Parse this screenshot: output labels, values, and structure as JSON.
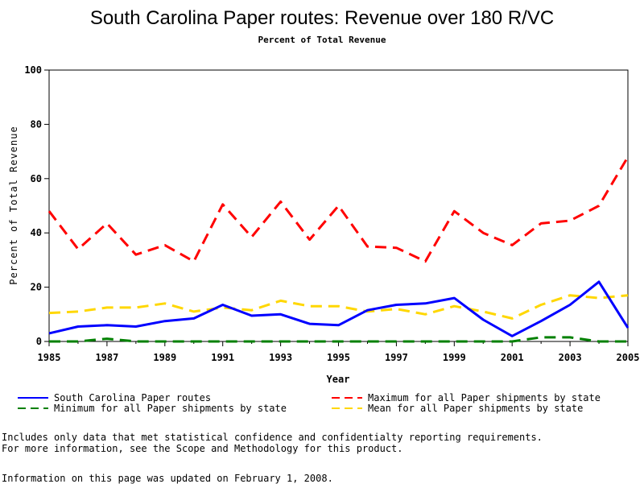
{
  "chart_data": {
    "type": "line",
    "title": "South Carolina Paper routes: Revenue over 180 R/VC",
    "subtitle": "Percent of Total Revenue",
    "xlabel": "Year",
    "ylabel": "Percent of Total Revenue",
    "xlim": [
      1985,
      2005
    ],
    "ylim": [
      0,
      100
    ],
    "x_ticks": [
      "1985",
      "1987",
      "1989",
      "1991",
      "1993",
      "1995",
      "1997",
      "1999",
      "2001",
      "2003",
      "2005"
    ],
    "y_ticks": [
      "0",
      "20",
      "40",
      "60",
      "80",
      "100"
    ],
    "grid": false,
    "legend_position": "bottom",
    "x": [
      1985,
      1986,
      1987,
      1988,
      1989,
      1990,
      1991,
      1992,
      1993,
      1994,
      1995,
      1996,
      1997,
      1998,
      1999,
      2000,
      2001,
      2002,
      2003,
      2004,
      2005
    ],
    "series": [
      {
        "name": "South Carolina Paper routes",
        "color": "#0000ff",
        "dash": "solid",
        "values": [
          3,
          5.5,
          6,
          5.5,
          7.5,
          8.5,
          13.5,
          9.5,
          10,
          6.5,
          6,
          11.5,
          13.5,
          14,
          16,
          8,
          2,
          7.5,
          13.5,
          22,
          5
        ]
      },
      {
        "name": "Maximum for all Paper shipments by state",
        "color": "#ff0000",
        "dash": "dashed",
        "values": [
          48,
          34,
          43.5,
          32,
          35.5,
          29.5,
          50.5,
          38.5,
          51.5,
          37.5,
          50,
          35,
          34.5,
          29.5,
          48,
          40,
          35.5,
          43.5,
          44.5,
          50,
          68
        ]
      },
      {
        "name": "Minimum for all Paper shipments by state",
        "color": "#008000",
        "dash": "dashed",
        "values": [
          0,
          0,
          1,
          0,
          0,
          0,
          0,
          0,
          0,
          0,
          0,
          0,
          0,
          0,
          0,
          0,
          0,
          1.5,
          1.5,
          0,
          0
        ]
      },
      {
        "name": "Mean for all Paper shipments by state",
        "color": "#ffd700",
        "dash": "dashed",
        "values": [
          10.5,
          11,
          12.5,
          12.5,
          14,
          11,
          12.5,
          11.5,
          15,
          13,
          13,
          11,
          12,
          10,
          13,
          11,
          8.5,
          13.5,
          17,
          16,
          17
        ]
      }
    ]
  },
  "notes": {
    "line1": "Includes only data that met statistical confidence and confidentialty reporting requirements.",
    "line2": "For more information, see the Scope and Methodology for this product.",
    "updated": "Information on this page was updated on February 1, 2008."
  }
}
